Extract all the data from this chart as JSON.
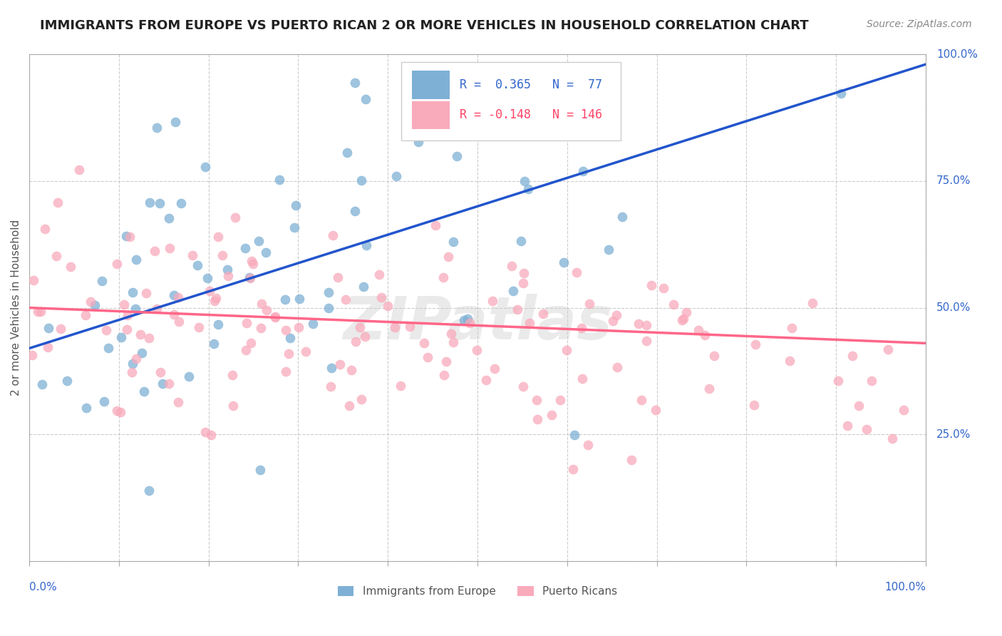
{
  "title": "IMMIGRANTS FROM EUROPE VS PUERTO RICAN 2 OR MORE VEHICLES IN HOUSEHOLD CORRELATION CHART",
  "source": "Source: ZipAtlas.com",
  "ylabel": "2 or more Vehicles in Household",
  "legend_r1": "R =  0.365",
  "legend_n1": "N =  77",
  "legend_r2": "R = -0.148",
  "legend_n2": "N = 146",
  "color_blue": "#7EB0D5",
  "color_pink": "#F9AABB",
  "color_blue_line": "#2255CC",
  "color_pink_line": "#FF6688",
  "color_blue_text": "#3366CC",
  "color_pink_text": "#FF4466",
  "color_axis_text": "#3366CC",
  "watermark_color": "#CCCCCC",
  "grid_color": "#CCCCCC",
  "background_color": "#FFFFFF"
}
